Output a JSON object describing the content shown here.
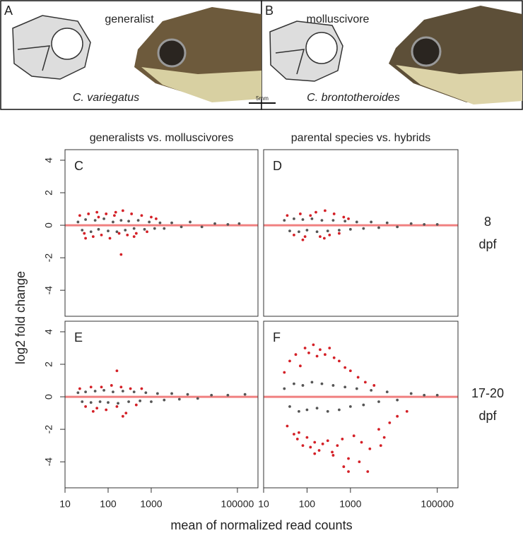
{
  "photos": {
    "panels": [
      {
        "letter": "A",
        "caption": "generalist",
        "species": "C. variegatus",
        "color": "#c1272d"
      },
      {
        "letter": "B",
        "caption": "molluscivore",
        "species": "C. brontotheroides",
        "color": "#2a6f9b"
      }
    ],
    "scale_bar": "5mm"
  },
  "axis_labels": {
    "y": "log2 fold change",
    "x": "mean of normalized read counts"
  },
  "chart_data": [
    {
      "type": "scatter",
      "label": "C",
      "title": "generalists vs. molluscivores",
      "log_x": true,
      "xlim": [
        10,
        300000
      ],
      "ylim": [
        -5.6,
        4.65
      ],
      "yticks": [
        -4,
        -2,
        0,
        2,
        4
      ],
      "hline": 0,
      "hline_color": "#f08080",
      "series": [
        {
          "color": "#555555",
          "x": [
            20,
            25,
            30,
            40,
            50,
            60,
            80,
            100,
            130,
            160,
            200,
            250,
            300,
            400,
            500,
            700,
            900,
            1200,
            1600,
            2000,
            3000,
            5000,
            8000,
            15000,
            30000,
            60000,
            110000
          ],
          "values": [
            0.2,
            -0.3,
            0.35,
            -0.4,
            0.3,
            -0.25,
            0.4,
            -0.35,
            0.2,
            -0.4,
            0.3,
            -0.3,
            0.25,
            -0.2,
            0.3,
            -0.25,
            0.2,
            -0.2,
            0.15,
            -0.2,
            0.15,
            -0.1,
            0.2,
            -0.1,
            0.1,
            0.05,
            0.1
          ]
        },
        {
          "color": "#d42027",
          "x": [
            22,
            28,
            35,
            45,
            55,
            70,
            90,
            110,
            140,
            180,
            220,
            280,
            350,
            450,
            600,
            800,
            1000,
            1300,
            200,
            30,
            60,
            150,
            400
          ],
          "values": [
            0.6,
            -0.5,
            0.7,
            -0.7,
            0.8,
            -0.6,
            0.7,
            -0.8,
            0.6,
            -0.5,
            0.9,
            -0.6,
            0.7,
            -0.5,
            0.6,
            -0.4,
            0.5,
            0.4,
            -1.8,
            -0.8,
            0.5,
            0.8,
            -0.7
          ]
        }
      ]
    },
    {
      "type": "scatter",
      "label": "D",
      "title": "parental species vs. hybrids",
      "side_label": [
        "8",
        "dpf"
      ],
      "log_x": true,
      "xlim": [
        10,
        300000
      ],
      "ylim": [
        -5.6,
        4.65
      ],
      "hline": 0,
      "hline_color": "#f08080",
      "series": [
        {
          "color": "#555555",
          "x": [
            30,
            40,
            50,
            65,
            80,
            100,
            130,
            170,
            220,
            300,
            400,
            550,
            750,
            1000,
            1400,
            2000,
            3000,
            4500,
            7000,
            12000,
            25000,
            50000,
            100000
          ],
          "values": [
            0.3,
            -0.35,
            0.4,
            -0.4,
            0.35,
            -0.3,
            0.4,
            -0.4,
            0.3,
            -0.35,
            0.3,
            -0.3,
            0.25,
            -0.25,
            0.2,
            -0.2,
            0.2,
            -0.15,
            0.15,
            -0.1,
            0.1,
            0.05,
            0.05
          ]
        },
        {
          "color": "#d42027",
          "x": [
            35,
            50,
            70,
            90,
            120,
            160,
            200,
            260,
            330,
            420,
            550,
            700,
            900,
            80,
            250
          ],
          "values": [
            0.6,
            -0.6,
            0.7,
            -0.7,
            0.6,
            0.8,
            -0.7,
            0.9,
            -0.6,
            0.7,
            -0.5,
            0.5,
            0.4,
            -0.9,
            -0.8
          ]
        }
      ]
    },
    {
      "type": "scatter",
      "label": "E",
      "side_label": null,
      "log_x": true,
      "xlim": [
        10,
        300000
      ],
      "ylim": [
        -5.6,
        4.65
      ],
      "yticks": [
        -4,
        -2,
        0,
        2,
        4
      ],
      "xticks": [
        10,
        100,
        1000,
        100000
      ],
      "hline": 0,
      "hline_color": "#f08080",
      "series": [
        {
          "color": "#555555",
          "x": [
            20,
            25,
            30,
            40,
            50,
            65,
            80,
            100,
            130,
            170,
            220,
            300,
            400,
            550,
            750,
            1000,
            1400,
            2000,
            3000,
            4500,
            7000,
            12000,
            25000,
            60000,
            150000
          ],
          "values": [
            0.25,
            -0.3,
            0.3,
            -0.35,
            0.35,
            -0.3,
            0.4,
            -0.35,
            0.3,
            -0.4,
            0.35,
            -0.3,
            0.3,
            -0.25,
            0.25,
            -0.3,
            0.2,
            -0.2,
            0.2,
            -0.15,
            0.15,
            -0.1,
            0.1,
            0.1,
            0.15
          ]
        },
        {
          "color": "#d42027",
          "x": [
            22,
            30,
            40,
            55,
            70,
            90,
            120,
            160,
            200,
            260,
            330,
            450,
            600,
            160,
            220,
            45
          ],
          "values": [
            0.5,
            -0.6,
            0.6,
            -0.7,
            0.6,
            -0.8,
            0.7,
            -0.6,
            0.6,
            -1.0,
            0.5,
            -0.5,
            0.5,
            1.6,
            -1.2,
            -0.9
          ]
        }
      ]
    },
    {
      "type": "scatter",
      "label": "F",
      "side_label": [
        "17-20",
        "dpf"
      ],
      "log_x": true,
      "xlim": [
        10,
        300000
      ],
      "ylim": [
        -5.6,
        4.65
      ],
      "xticks": [
        10,
        100,
        1000,
        100000
      ],
      "hline": 0,
      "hline_color": "#f08080",
      "series": [
        {
          "color": "#555555",
          "x": [
            30,
            40,
            50,
            65,
            80,
            100,
            130,
            170,
            220,
            300,
            400,
            550,
            750,
            1000,
            1400,
            2000,
            3000,
            4500,
            7000,
            12000,
            25000,
            50000,
            100000
          ],
          "values": [
            0.5,
            -0.6,
            0.8,
            -0.9,
            0.7,
            -0.8,
            0.9,
            -0.7,
            0.8,
            -0.9,
            0.7,
            -0.8,
            0.6,
            -0.6,
            0.5,
            -0.5,
            0.4,
            -0.3,
            0.3,
            -0.2,
            0.2,
            0.1,
            0.1
          ]
        },
        {
          "color": "#d42027",
          "x": [
            30,
            35,
            40,
            50,
            55,
            65,
            70,
            80,
            90,
            100,
            110,
            120,
            140,
            150,
            170,
            190,
            200,
            230,
            260,
            300,
            330,
            380,
            420,
            500,
            550,
            650,
            750,
            900,
            1000,
            1200,
            1500,
            1800,
            2200,
            2800,
            3500,
            4500,
            6000,
            8000,
            12000,
            20000,
            700,
            900,
            400,
            150,
            60,
            2500,
            5000,
            1600
          ],
          "values": [
            1.5,
            -1.8,
            2.2,
            -2.3,
            2.6,
            -2.2,
            1.9,
            -3.0,
            3.0,
            -2.5,
            2.7,
            -3.1,
            3.2,
            -2.8,
            2.5,
            -3.3,
            2.9,
            -2.9,
            2.6,
            -2.7,
            3.0,
            -3.4,
            2.4,
            -3.0,
            2.2,
            -2.6,
            1.8,
            -3.8,
            1.6,
            -2.4,
            1.2,
            -2.8,
            0.9,
            -3.2,
            0.7,
            -2.0,
            -2.5,
            -1.6,
            -1.2,
            -0.9,
            -4.3,
            -4.6,
            -3.6,
            -3.5,
            -2.6,
            -4.6,
            -3.0,
            -4.0
          ]
        }
      ]
    }
  ]
}
